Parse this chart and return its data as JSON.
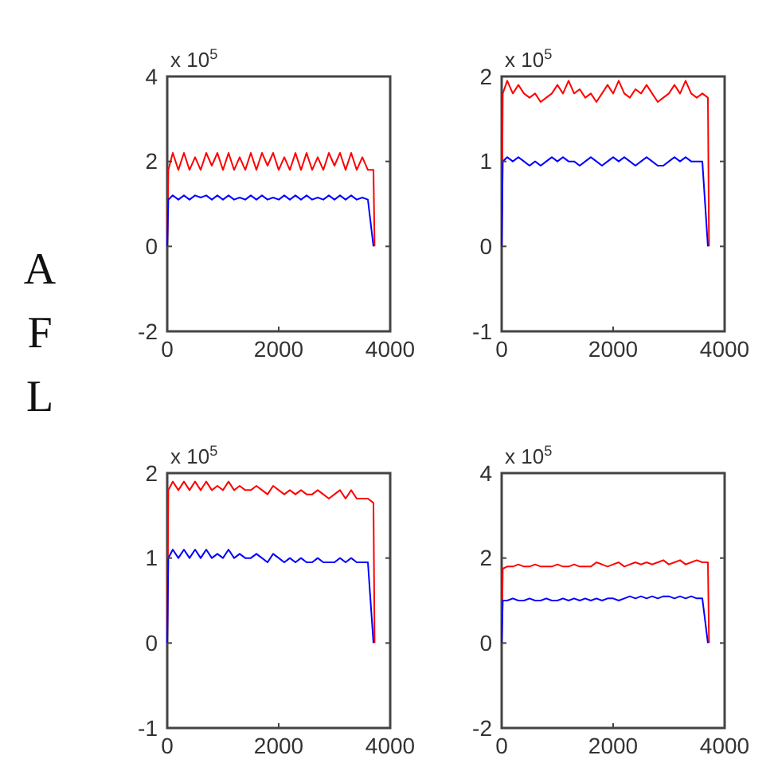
{
  "chart_data": [
    {
      "type": "line",
      "ylabel": "AFL",
      "annotations": [
        "x 10$^{5}$"
      ],
      "xlim": [
        0,
        4000
      ],
      "xticks": [
        0,
        2000,
        4000
      ],
      "ylim": [
        -2,
        4
      ],
      "yticks": [
        -2,
        0,
        2,
        4
      ],
      "x": [
        0,
        20,
        100,
        200,
        300,
        400,
        500,
        600,
        700,
        800,
        900,
        1000,
        1100,
        1200,
        1300,
        1400,
        1500,
        1600,
        1700,
        1800,
        1900,
        2000,
        2100,
        2200,
        2300,
        2400,
        2500,
        2600,
        2700,
        2800,
        2900,
        3000,
        3100,
        3200,
        3300,
        3400,
        3500,
        3600,
        3700,
        3720
      ],
      "series": [
        {
          "color": "#ff0000",
          "values": [
            0,
            1.8,
            2.2,
            1.8,
            2.2,
            1.8,
            2.1,
            1.8,
            2.2,
            1.9,
            2.2,
            1.8,
            2.2,
            1.8,
            2.1,
            1.8,
            2.2,
            1.8,
            2.2,
            1.9,
            2.2,
            1.8,
            2.1,
            1.8,
            2.2,
            1.8,
            2.2,
            1.8,
            2.1,
            1.8,
            2.2,
            1.9,
            2.2,
            1.8,
            2.2,
            1.8,
            2.1,
            1.8,
            1.8,
            0
          ]
        },
        {
          "color": "#0000ff",
          "values": [
            0,
            1.1,
            1.2,
            1.1,
            1.2,
            1.1,
            1.2,
            1.15,
            1.2,
            1.1,
            1.2,
            1.1,
            1.2,
            1.1,
            1.15,
            1.1,
            1.2,
            1.1,
            1.2,
            1.1,
            1.15,
            1.1,
            1.2,
            1.1,
            1.2,
            1.1,
            1.2,
            1.1,
            1.15,
            1.1,
            1.2,
            1.1,
            1.2,
            1.1,
            1.2,
            1.1,
            1.15,
            1.1,
            0,
            null
          ]
        }
      ]
    },
    {
      "type": "line",
      "annotations": [
        "x 10$^{5}$"
      ],
      "xlim": [
        0,
        4000
      ],
      "xticks": [
        0,
        2000,
        4000
      ],
      "ylim": [
        -1,
        2
      ],
      "yticks": [
        -1,
        0,
        1,
        2
      ],
      "x": [
        0,
        20,
        100,
        200,
        300,
        400,
        500,
        600,
        700,
        800,
        900,
        1000,
        1100,
        1200,
        1300,
        1400,
        1500,
        1600,
        1700,
        1800,
        1900,
        2000,
        2100,
        2200,
        2300,
        2400,
        2500,
        2600,
        2700,
        2800,
        2900,
        3000,
        3100,
        3200,
        3300,
        3400,
        3500,
        3600,
        3700,
        3720
      ],
      "series": [
        {
          "color": "#ff0000",
          "values": [
            0,
            1.8,
            1.95,
            1.8,
            1.9,
            1.8,
            1.75,
            1.8,
            1.7,
            1.75,
            1.8,
            1.9,
            1.8,
            1.95,
            1.8,
            1.85,
            1.75,
            1.8,
            1.7,
            1.8,
            1.9,
            1.8,
            1.95,
            1.8,
            1.75,
            1.85,
            1.8,
            1.9,
            1.8,
            1.7,
            1.75,
            1.8,
            1.9,
            1.8,
            1.95,
            1.8,
            1.75,
            1.8,
            1.75,
            0
          ]
        },
        {
          "color": "#0000ff",
          "values": [
            0,
            1.0,
            1.05,
            1.0,
            1.05,
            1.0,
            0.95,
            1.0,
            0.95,
            1.0,
            1.05,
            1.0,
            1.05,
            1.0,
            1.0,
            0.95,
            1.0,
            1.05,
            1.0,
            0.95,
            1.0,
            1.05,
            1.0,
            1.05,
            1.0,
            0.95,
            1.0,
            1.05,
            1.0,
            0.95,
            0.95,
            1.0,
            1.05,
            1.0,
            1.05,
            1.0,
            1.0,
            1.0,
            0,
            null
          ]
        }
      ]
    },
    {
      "type": "line",
      "annotations": [
        "x 10$^{5}$"
      ],
      "xlim": [
        0,
        4000
      ],
      "xticks": [
        0,
        2000,
        4000
      ],
      "ylim": [
        -1,
        2
      ],
      "yticks": [
        -1,
        0,
        1,
        2
      ],
      "x": [
        0,
        20,
        100,
        200,
        300,
        400,
        500,
        600,
        700,
        800,
        900,
        1000,
        1100,
        1200,
        1300,
        1400,
        1500,
        1600,
        1700,
        1800,
        1900,
        2000,
        2100,
        2200,
        2300,
        2400,
        2500,
        2600,
        2700,
        2800,
        2900,
        3000,
        3100,
        3200,
        3300,
        3400,
        3500,
        3600,
        3700,
        3720
      ],
      "series": [
        {
          "color": "#ff0000",
          "values": [
            0,
            1.8,
            1.9,
            1.8,
            1.9,
            1.8,
            1.9,
            1.8,
            1.9,
            1.8,
            1.85,
            1.8,
            1.9,
            1.8,
            1.85,
            1.8,
            1.8,
            1.85,
            1.8,
            1.75,
            1.85,
            1.8,
            1.75,
            1.8,
            1.75,
            1.8,
            1.75,
            1.75,
            1.8,
            1.75,
            1.7,
            1.75,
            1.8,
            1.7,
            1.8,
            1.7,
            1.7,
            1.7,
            1.65,
            0
          ]
        },
        {
          "color": "#0000ff",
          "values": [
            0,
            1.0,
            1.1,
            1.0,
            1.1,
            1.0,
            1.1,
            1.0,
            1.1,
            1.0,
            1.05,
            1.0,
            1.1,
            1.0,
            1.05,
            1.0,
            1.0,
            1.05,
            1.0,
            0.95,
            1.05,
            1.0,
            0.95,
            1.0,
            0.95,
            1.0,
            0.95,
            0.95,
            1.0,
            0.95,
            0.95,
            0.95,
            1.0,
            0.95,
            1.0,
            0.95,
            0.95,
            0.95,
            0,
            null
          ]
        }
      ]
    },
    {
      "type": "line",
      "annotations": [
        "x 10$^{5}$"
      ],
      "xlim": [
        0,
        4000
      ],
      "xticks": [
        0,
        2000,
        4000
      ],
      "ylim": [
        -2,
        4
      ],
      "yticks": [
        -2,
        0,
        2,
        4
      ],
      "x": [
        0,
        20,
        100,
        200,
        300,
        400,
        500,
        600,
        700,
        800,
        900,
        1000,
        1100,
        1200,
        1300,
        1400,
        1500,
        1600,
        1700,
        1800,
        1900,
        2000,
        2100,
        2200,
        2300,
        2400,
        2500,
        2600,
        2700,
        2800,
        2900,
        3000,
        3100,
        3200,
        3300,
        3400,
        3500,
        3600,
        3700,
        3720
      ],
      "series": [
        {
          "color": "#ff0000",
          "values": [
            0,
            1.75,
            1.8,
            1.8,
            1.85,
            1.8,
            1.8,
            1.85,
            1.8,
            1.8,
            1.8,
            1.85,
            1.8,
            1.8,
            1.85,
            1.8,
            1.8,
            1.8,
            1.9,
            1.85,
            1.8,
            1.85,
            1.9,
            1.8,
            1.85,
            1.9,
            1.85,
            1.9,
            1.85,
            1.9,
            1.95,
            1.85,
            1.9,
            1.95,
            1.85,
            1.9,
            1.95,
            1.9,
            1.9,
            0
          ]
        },
        {
          "color": "#0000ff",
          "values": [
            0,
            1.0,
            1.0,
            1.05,
            1.0,
            1.0,
            1.05,
            1.0,
            1.0,
            1.05,
            1.0,
            1.0,
            1.05,
            1.0,
            1.05,
            1.0,
            1.05,
            1.0,
            1.05,
            1.0,
            1.05,
            1.05,
            1.0,
            1.05,
            1.1,
            1.05,
            1.1,
            1.05,
            1.1,
            1.05,
            1.1,
            1.1,
            1.05,
            1.1,
            1.05,
            1.1,
            1.05,
            1.05,
            0,
            null
          ]
        }
      ]
    }
  ]
}
